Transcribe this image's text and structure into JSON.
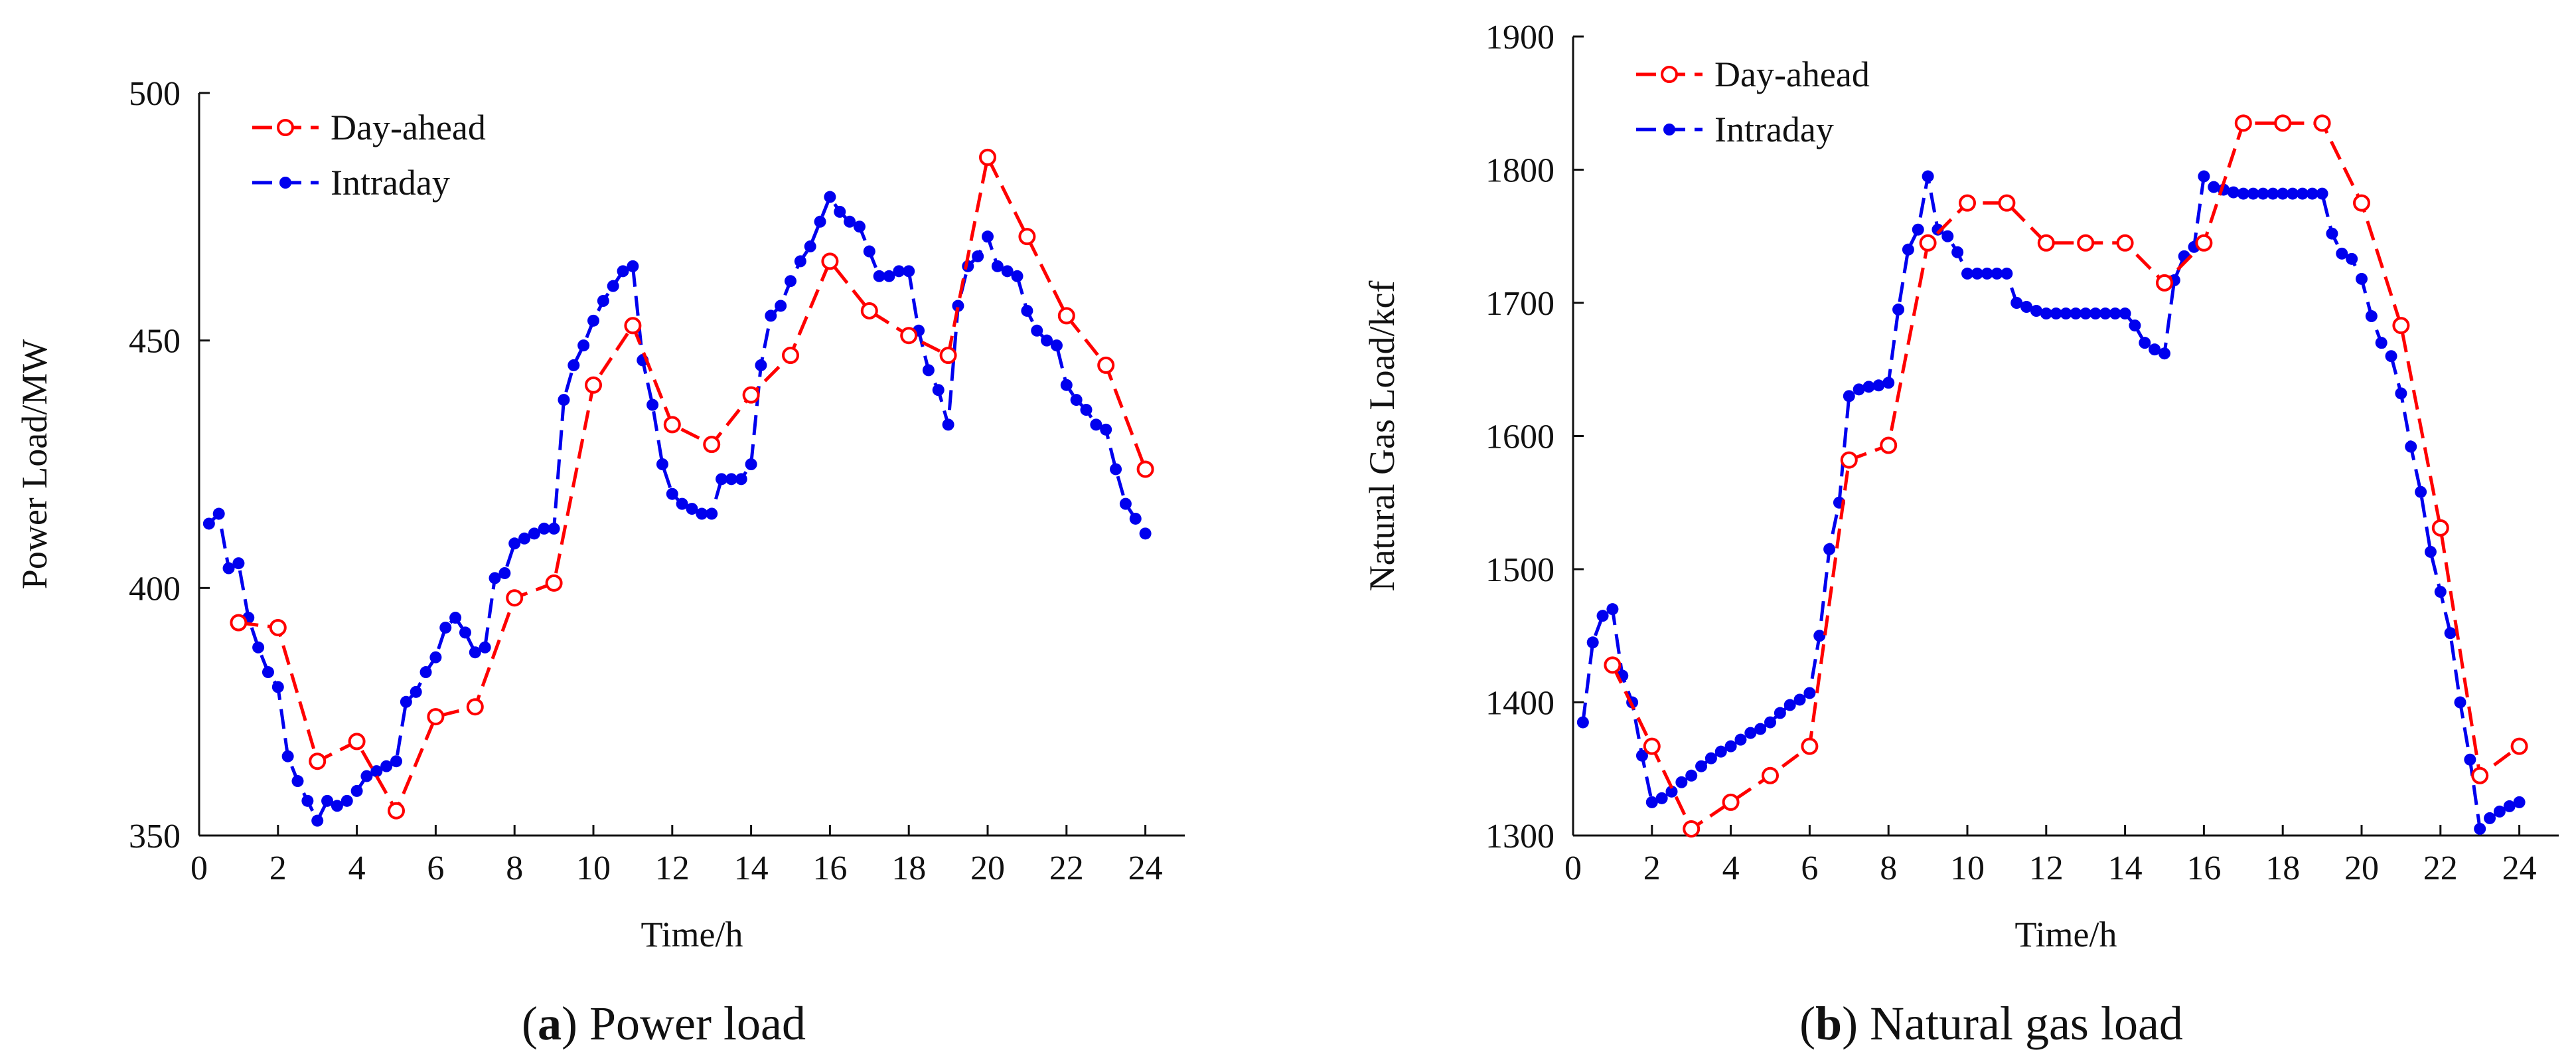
{
  "colors": {
    "day_ahead": "#ff0000",
    "intraday": "#0000ee",
    "axis": "#111111"
  },
  "panels": [
    {
      "caption": {
        "letter": "a",
        "text": "Power load"
      },
      "chart_data": {
        "type": "line",
        "xlabel": "Time/h",
        "ylabel": "Power Load/MW",
        "xlim": [
          0,
          25
        ],
        "ylim": [
          350,
          500
        ],
        "xticks": [
          0,
          2,
          4,
          6,
          8,
          10,
          12,
          14,
          16,
          18,
          20,
          22,
          24
        ],
        "yticks": [
          350,
          400,
          450,
          500
        ],
        "grid": false,
        "legend_position": "top-left",
        "series": [
          {
            "name": "Day-ahead",
            "style": "dashed",
            "marker": "open-circle",
            "color": "#ff0000",
            "x": [
              1,
              2,
              3,
              4,
              5,
              6,
              7,
              8,
              9,
              10,
              11,
              12,
              13,
              14,
              15,
              16,
              17,
              18,
              19,
              20,
              21,
              22,
              23,
              24
            ],
            "y": [
              393,
              392,
              365,
              369,
              355,
              374,
              376,
              398,
              401,
              441,
              453,
              433,
              429,
              439,
              447,
              466,
              456,
              451,
              447,
              487,
              471,
              455,
              445,
              424
            ]
          },
          {
            "name": "Intraday",
            "style": "dashed",
            "marker": "filled-dot",
            "color": "#0000ee",
            "x": [
              0.25,
              0.5,
              0.75,
              1,
              1.25,
              1.5,
              1.75,
              2,
              2.25,
              2.5,
              2.75,
              3,
              3.25,
              3.5,
              3.75,
              4,
              4.25,
              4.5,
              4.75,
              5,
              5.25,
              5.5,
              5.75,
              6,
              6.25,
              6.5,
              6.75,
              7,
              7.25,
              7.5,
              7.75,
              8,
              8.25,
              8.5,
              8.75,
              9,
              9.25,
              9.5,
              9.75,
              10,
              10.25,
              10.5,
              10.75,
              11,
              11.25,
              11.5,
              11.75,
              12,
              12.25,
              12.5,
              12.75,
              13,
              13.25,
              13.5,
              13.75,
              14,
              14.25,
              14.5,
              14.75,
              15,
              15.25,
              15.5,
              15.75,
              16,
              16.25,
              16.5,
              16.75,
              17,
              17.25,
              17.5,
              17.75,
              18,
              18.25,
              18.5,
              18.75,
              19,
              19.25,
              19.5,
              19.75,
              20,
              20.25,
              20.5,
              20.75,
              21,
              21.25,
              21.5,
              21.75,
              22,
              22.25,
              22.5,
              22.75,
              23,
              23.25,
              23.5,
              23.75,
              24
            ],
            "y": [
              413,
              415,
              404,
              405,
              394,
              388,
              383,
              380,
              366,
              361,
              357,
              353,
              357,
              356,
              357,
              359,
              362,
              363,
              364,
              365,
              377,
              379,
              383,
              386,
              392,
              394,
              391,
              387,
              388,
              402,
              403,
              409,
              410,
              411,
              412,
              412,
              438,
              445,
              449,
              454,
              458,
              461,
              464,
              465,
              446,
              437,
              425,
              419,
              417,
              416,
              415,
              415,
              422,
              422,
              422,
              425,
              445,
              455,
              457,
              462,
              466,
              469,
              474,
              479,
              476,
              474,
              473,
              468,
              463,
              463,
              464,
              464,
              452,
              444,
              440,
              433,
              457,
              465,
              467,
              471,
              465,
              464,
              463,
              456,
              452,
              450,
              449,
              441,
              438,
              436,
              433,
              432,
              424,
              417,
              414,
              411
            ]
          }
        ]
      }
    },
    {
      "caption": {
        "letter": "b",
        "text": "Natural gas load"
      },
      "chart_data": {
        "type": "line",
        "xlabel": "Time/h",
        "ylabel": "Natural Gas Load/kcf",
        "xlim": [
          0,
          25
        ],
        "ylim": [
          1300,
          1900
        ],
        "xticks": [
          0,
          2,
          4,
          6,
          8,
          10,
          12,
          14,
          16,
          18,
          20,
          22,
          24
        ],
        "yticks": [
          1300,
          1400,
          1500,
          1600,
          1700,
          1800,
          1900
        ],
        "grid": false,
        "legend_position": "top-left",
        "series": [
          {
            "name": "Day-ahead",
            "style": "dashed",
            "marker": "open-circle",
            "color": "#ff0000",
            "x": [
              1,
              2,
              3,
              4,
              5,
              6,
              7,
              8,
              9,
              10,
              11,
              12,
              13,
              14,
              15,
              16,
              17,
              18,
              19,
              20,
              21,
              22,
              23,
              24
            ],
            "y": [
              1428,
              1367,
              1305,
              1325,
              1345,
              1367,
              1582,
              1593,
              1745,
              1775,
              1775,
              1745,
              1745,
              1745,
              1715,
              1745,
              1835,
              1835,
              1835,
              1775,
              1683,
              1531,
              1345,
              1367
            ]
          },
          {
            "name": "Intraday",
            "style": "dashed",
            "marker": "filled-dot",
            "color": "#0000ee",
            "x": [
              0.25,
              0.5,
              0.75,
              1,
              1.25,
              1.5,
              1.75,
              2,
              2.25,
              2.5,
              2.75,
              3,
              3.25,
              3.5,
              3.75,
              4,
              4.25,
              4.5,
              4.75,
              5,
              5.25,
              5.5,
              5.75,
              6,
              6.25,
              6.5,
              6.75,
              7,
              7.25,
              7.5,
              7.75,
              8,
              8.25,
              8.5,
              8.75,
              9,
              9.25,
              9.5,
              9.75,
              10,
              10.25,
              10.5,
              10.75,
              11,
              11.25,
              11.5,
              11.75,
              12,
              12.25,
              12.5,
              12.75,
              13,
              13.25,
              13.5,
              13.75,
              14,
              14.25,
              14.5,
              14.75,
              15,
              15.25,
              15.5,
              15.75,
              16,
              16.25,
              16.5,
              16.75,
              17,
              17.25,
              17.5,
              17.75,
              18,
              18.25,
              18.5,
              18.75,
              19,
              19.25,
              19.5,
              19.75,
              20,
              20.25,
              20.5,
              20.75,
              21,
              21.25,
              21.5,
              21.75,
              22,
              22.25,
              22.5,
              22.75,
              23,
              23.25,
              23.5,
              23.75,
              24
            ],
            "y": [
              1385,
              1445,
              1465,
              1470,
              1420,
              1400,
              1360,
              1325,
              1328,
              1333,
              1340,
              1345,
              1352,
              1358,
              1363,
              1367,
              1372,
              1377,
              1380,
              1385,
              1392,
              1398,
              1402,
              1407,
              1450,
              1515,
              1550,
              1630,
              1635,
              1637,
              1638,
              1640,
              1695,
              1740,
              1755,
              1795,
              1755,
              1750,
              1738,
              1722,
              1722,
              1722,
              1722,
              1722,
              1700,
              1697,
              1694,
              1692,
              1692,
              1692,
              1692,
              1692,
              1692,
              1692,
              1692,
              1692,
              1683,
              1670,
              1665,
              1662,
              1717,
              1735,
              1742,
              1795,
              1787,
              1785,
              1783,
              1782,
              1782,
              1782,
              1782,
              1782,
              1782,
              1782,
              1782,
              1782,
              1752,
              1737,
              1733,
              1718,
              1690,
              1670,
              1660,
              1632,
              1592,
              1558,
              1513,
              1483,
              1452,
              1400,
              1357,
              1305,
              1313,
              1318,
              1322,
              1325
            ]
          }
        ]
      }
    }
  ]
}
